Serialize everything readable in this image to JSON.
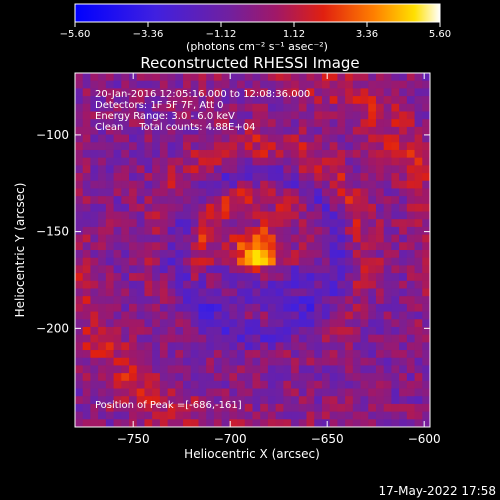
{
  "chart_data": {
    "type": "heatmap",
    "title": "Reconstructed RHESSI Image",
    "xlabel": "Heliocentric X (arcsec)",
    "ylabel": "Heliocentric Y (arcsec)",
    "xlim": [
      -780,
      -597
    ],
    "ylim": [
      -251,
      -68
    ],
    "x_ticks": [
      -750,
      -700,
      -650,
      -600
    ],
    "x_tick_labels": [
      "−750",
      "−700",
      "−650",
      "−600"
    ],
    "y_ticks": [
      -100,
      -150,
      -200
    ],
    "y_tick_labels": [
      "−100",
      "−150",
      "−200"
    ],
    "colorbar": {
      "min": -5.6,
      "max": 5.6,
      "ticks": [
        -5.6,
        -3.36,
        -1.12,
        1.12,
        3.36,
        5.6
      ],
      "tick_labels": [
        "−5.60",
        "−3.36",
        "−1.12",
        "1.12",
        "3.36",
        "5.60"
      ],
      "unit_label": "(photons cm⁻² s⁻¹ asec⁻²)",
      "colormap": "blue-purple-red-yellow-white"
    },
    "annotations": [
      "20-Jan-2016 12:05:16.000 to 12:08:36.000",
      "Detectors: 1F 5F 7F, Att 0",
      "Energy Range: 3.0 - 6.0 keV",
      "Clean     Total counts: 4.88E+04"
    ],
    "peak": {
      "label": "Position of Peak =[-686,-161]",
      "x": -686,
      "y": -161
    },
    "source": {
      "center_x": -686,
      "center_y": -161,
      "ring_radii": [
        28,
        56,
        84
      ],
      "peak_value": 5.6
    },
    "grid": false
  },
  "footer": {
    "timestamp": "17-May-2022 17:58"
  },
  "colors": {
    "background": "#000000",
    "foreground": "#ffffff",
    "peak_color": "#ffffc8",
    "ring_color": "#e05010",
    "trough_color": "#5a1a9a"
  }
}
